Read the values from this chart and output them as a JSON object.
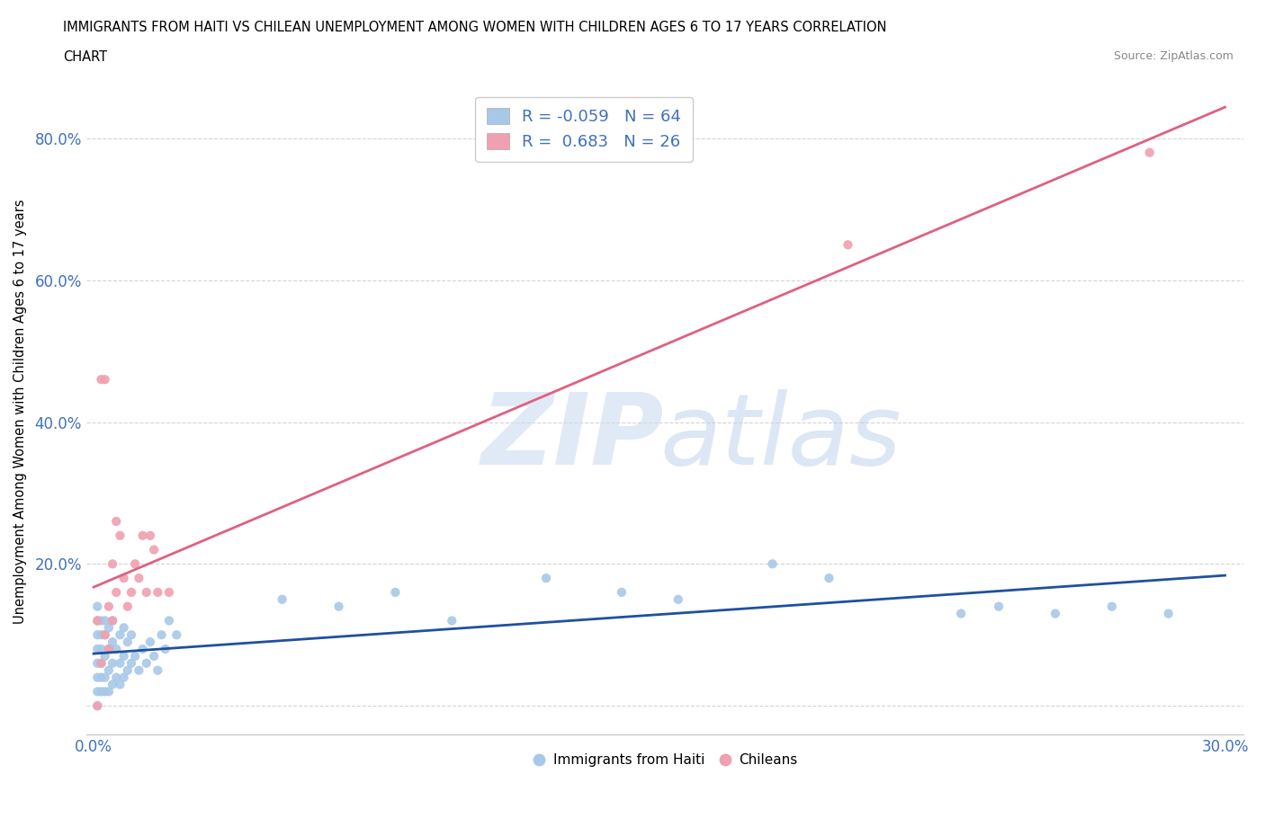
{
  "title_line1": "IMMIGRANTS FROM HAITI VS CHILEAN UNEMPLOYMENT AMONG WOMEN WITH CHILDREN AGES 6 TO 17 YEARS CORRELATION",
  "title_line2": "CHART",
  "source": "Source: ZipAtlas.com",
  "ylabel": "Unemployment Among Women with Children Ages 6 to 17 years",
  "xlim": [
    -0.002,
    0.305
  ],
  "ylim": [
    -0.04,
    0.87
  ],
  "xticks": [
    0.0,
    0.05,
    0.1,
    0.15,
    0.2,
    0.25,
    0.3
  ],
  "yticks": [
    0.0,
    0.2,
    0.4,
    0.6,
    0.8
  ],
  "grid_color": "#d0d0d0",
  "background_color": "#ffffff",
  "haiti_color": "#a8c8e8",
  "chilean_color": "#f0a0b0",
  "haiti_line_color": "#2050a0",
  "chilean_line_color": "#e06080",
  "legend_R_haiti": "-0.059",
  "legend_N_haiti": "64",
  "legend_R_chilean": "0.683",
  "legend_N_chilean": "26",
  "haiti_x": [
    0.001,
    0.001,
    0.001,
    0.001,
    0.001,
    0.001,
    0.001,
    0.001,
    0.002,
    0.002,
    0.002,
    0.002,
    0.002,
    0.002,
    0.003,
    0.003,
    0.003,
    0.003,
    0.003,
    0.004,
    0.004,
    0.004,
    0.004,
    0.005,
    0.005,
    0.005,
    0.005,
    0.006,
    0.006,
    0.007,
    0.007,
    0.007,
    0.008,
    0.008,
    0.008,
    0.009,
    0.009,
    0.01,
    0.01,
    0.011,
    0.012,
    0.013,
    0.014,
    0.015,
    0.016,
    0.017,
    0.018,
    0.019,
    0.02,
    0.022,
    0.05,
    0.065,
    0.08,
    0.095,
    0.12,
    0.14,
    0.155,
    0.18,
    0.195,
    0.23,
    0.24,
    0.255,
    0.27,
    0.285
  ],
  "haiti_y": [
    0.02,
    0.04,
    0.06,
    0.08,
    0.1,
    0.12,
    0.14,
    0.0,
    0.02,
    0.04,
    0.06,
    0.08,
    0.1,
    0.12,
    0.02,
    0.04,
    0.07,
    0.1,
    0.12,
    0.02,
    0.05,
    0.08,
    0.11,
    0.03,
    0.06,
    0.09,
    0.12,
    0.04,
    0.08,
    0.03,
    0.06,
    0.1,
    0.04,
    0.07,
    0.11,
    0.05,
    0.09,
    0.06,
    0.1,
    0.07,
    0.05,
    0.08,
    0.06,
    0.09,
    0.07,
    0.05,
    0.1,
    0.08,
    0.12,
    0.1,
    0.15,
    0.14,
    0.16,
    0.12,
    0.18,
    0.16,
    0.15,
    0.2,
    0.18,
    0.13,
    0.14,
    0.13,
    0.14,
    0.13
  ],
  "chilean_x": [
    0.001,
    0.001,
    0.002,
    0.002,
    0.003,
    0.003,
    0.004,
    0.004,
    0.005,
    0.005,
    0.006,
    0.006,
    0.007,
    0.008,
    0.009,
    0.01,
    0.011,
    0.012,
    0.013,
    0.014,
    0.015,
    0.016,
    0.017,
    0.02,
    0.2,
    0.28
  ],
  "chilean_y": [
    0.0,
    0.12,
    0.06,
    0.46,
    0.1,
    0.46,
    0.08,
    0.14,
    0.12,
    0.2,
    0.16,
    0.26,
    0.24,
    0.18,
    0.14,
    0.16,
    0.2,
    0.18,
    0.24,
    0.16,
    0.24,
    0.22,
    0.16,
    0.16,
    0.65,
    0.78
  ]
}
